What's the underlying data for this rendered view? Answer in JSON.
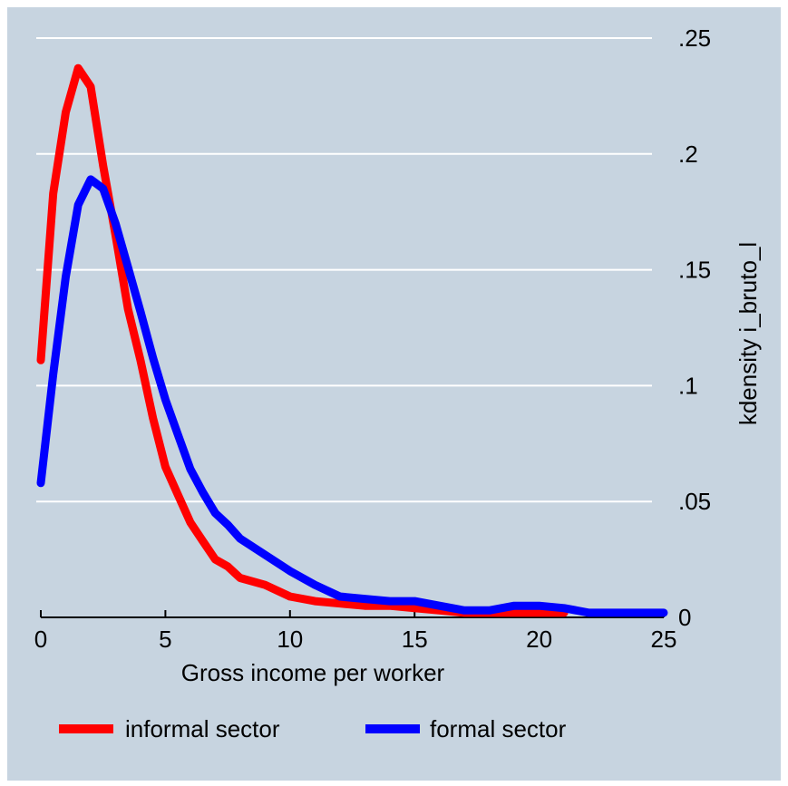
{
  "chart_data": {
    "type": "line",
    "xlabel": "Gross income per worker",
    "ylabel": "kdensity i_bruto_l",
    "xlim": [
      0,
      25
    ],
    "ylim": [
      0,
      0.25
    ],
    "x_ticks": [
      0,
      5,
      10,
      15,
      20,
      25
    ],
    "x_tick_labels": [
      "0",
      "5",
      "10",
      "15",
      "20",
      "25"
    ],
    "y_ticks": [
      0,
      0.05,
      0.1,
      0.15,
      0.2,
      0.25
    ],
    "y_tick_labels": [
      "0",
      ".05",
      ".1",
      ".15",
      ".2",
      ".25"
    ],
    "y_axis_side": "right",
    "grid": "horizontal",
    "legend_position": "bottom",
    "series": [
      {
        "name": "informal sector",
        "color": "#ff0000",
        "x": [
          0,
          0.5,
          1,
          1.5,
          2,
          2.5,
          3,
          3.5,
          4,
          4.5,
          5,
          5.5,
          6,
          6.5,
          7,
          7.5,
          8,
          9,
          10,
          11,
          12,
          13,
          14,
          15,
          16,
          17,
          18,
          19,
          20,
          21
        ],
        "y": [
          0.111,
          0.183,
          0.218,
          0.237,
          0.229,
          0.195,
          0.165,
          0.133,
          0.111,
          0.086,
          0.065,
          0.053,
          0.041,
          0.033,
          0.025,
          0.022,
          0.017,
          0.014,
          0.009,
          0.007,
          0.006,
          0.005,
          0.005,
          0.004,
          0.003,
          0.002,
          0.002,
          0.002,
          0.002,
          0.002
        ]
      },
      {
        "name": "formal sector",
        "color": "#0000ff",
        "x": [
          0,
          0.5,
          1,
          1.5,
          2,
          2.5,
          3,
          3.5,
          4,
          4.5,
          5,
          5.5,
          6,
          6.5,
          7,
          7.5,
          8,
          9,
          10,
          11,
          12,
          13,
          14,
          15,
          16,
          17,
          18,
          19,
          20,
          21,
          22,
          23,
          24,
          25
        ],
        "y": [
          0.058,
          0.105,
          0.147,
          0.178,
          0.189,
          0.185,
          0.17,
          0.151,
          0.132,
          0.112,
          0.094,
          0.079,
          0.064,
          0.054,
          0.045,
          0.04,
          0.034,
          0.027,
          0.02,
          0.014,
          0.009,
          0.008,
          0.007,
          0.007,
          0.005,
          0.003,
          0.003,
          0.005,
          0.005,
          0.004,
          0.002,
          0.002,
          0.002,
          0.002
        ]
      }
    ]
  }
}
